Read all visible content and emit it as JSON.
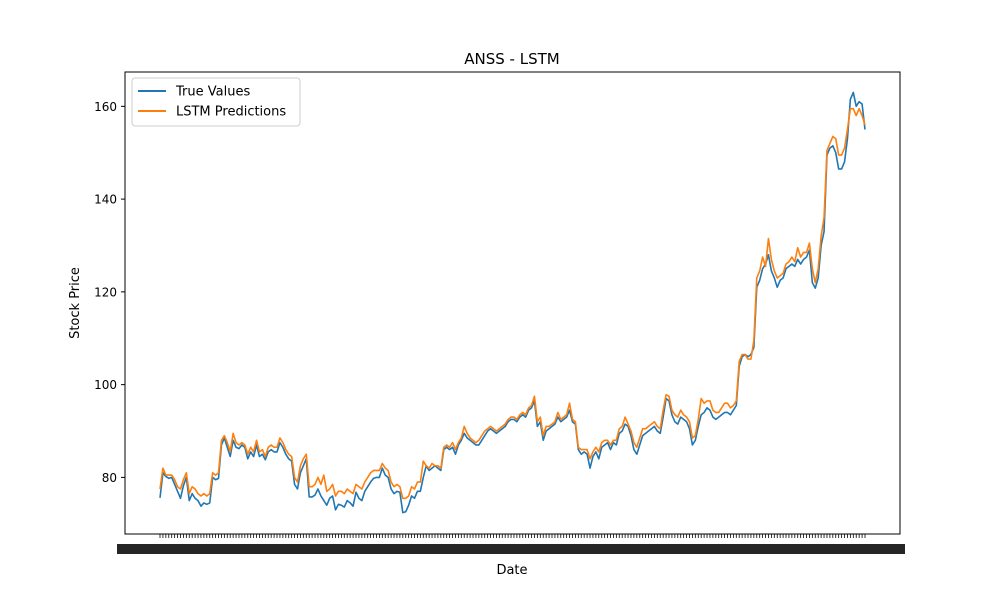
{
  "chart_data": {
    "type": "line",
    "title": "ANSS - LSTM",
    "xlabel": "Date",
    "ylabel": "Stock Price",
    "ylim": [
      67.8,
      167.4
    ],
    "yticks": [
      80,
      100,
      120,
      140,
      160
    ],
    "grid": false,
    "legend_position": "top-left",
    "x_tick_labels_note": "dense overlapping date tick labels (illegible)",
    "series": [
      {
        "name": "True Values",
        "color": "#1f77b4",
        "values": [
          75.6,
          81.0,
          80.2,
          79.8,
          80.0,
          78.5,
          77.0,
          75.5,
          78.2,
          80.0,
          75.0,
          76.5,
          75.5,
          75.0,
          73.8,
          74.5,
          74.2,
          74.5,
          80.0,
          79.5,
          79.8,
          87.0,
          88.5,
          86.5,
          84.5,
          88.0,
          86.5,
          86.2,
          87.0,
          86.5,
          84.0,
          85.5,
          84.5,
          87.0,
          84.5,
          85.0,
          83.8,
          85.5,
          86.0,
          85.5,
          85.5,
          87.5,
          86.5,
          85.0,
          84.0,
          83.5,
          78.5,
          77.5,
          81.0,
          82.5,
          84.0,
          75.8,
          75.8,
          76.2,
          77.5,
          76.0,
          75.0,
          74.0,
          75.5,
          76.0,
          73.0,
          74.2,
          74.0,
          73.6,
          75.0,
          74.5,
          73.8,
          76.8,
          75.5,
          75.0,
          77.0,
          78.0,
          79.0,
          79.8,
          80.0,
          80.0,
          82.0,
          80.5,
          80.0,
          77.5,
          76.5,
          77.0,
          76.8,
          72.4,
          72.6,
          74.0,
          76.0,
          75.5,
          77.0,
          77.0,
          80.0,
          82.5,
          81.5,
          82.0,
          82.5,
          82.0,
          81.5,
          86.0,
          86.5,
          86.0,
          86.5,
          85.0,
          87.0,
          88.0,
          89.5,
          88.5,
          88.0,
          87.5,
          87.0,
          87.0,
          88.0,
          89.0,
          90.0,
          90.5,
          90.0,
          89.5,
          90.0,
          90.5,
          91.0,
          92.0,
          92.5,
          92.5,
          92.0,
          93.0,
          93.5,
          93.0,
          94.5,
          95.0,
          96.5,
          91.0,
          92.0,
          88.0,
          90.0,
          90.5,
          91.0,
          91.5,
          93.0,
          92.0,
          92.5,
          93.0,
          94.5,
          92.0,
          91.5,
          86.0,
          85.0,
          85.5,
          85.0,
          82.0,
          84.5,
          85.5,
          84.0,
          86.5,
          87.0,
          87.5,
          86.0,
          87.5,
          87.0,
          89.5,
          90.0,
          91.5,
          91.0,
          89.0,
          86.0,
          85.0,
          87.0,
          89.0,
          89.5,
          90.0,
          90.5,
          91.0,
          90.0,
          89.5,
          93.0,
          97.0,
          96.5,
          93.5,
          92.0,
          91.5,
          93.0,
          92.5,
          92.0,
          90.5,
          87.0,
          88.0,
          91.0,
          93.5,
          94.0,
          95.0,
          94.5,
          93.0,
          92.5,
          93.0,
          93.5,
          94.0,
          94.0,
          93.5,
          94.5,
          95.5,
          104.0,
          106.0,
          106.5,
          106.0,
          106.5,
          108.0,
          121.0,
          122.5,
          125.0,
          126.0,
          128.0,
          124.5,
          123.0,
          121.0,
          122.5,
          123.0,
          125.0,
          125.5,
          126.0,
          125.5,
          127.0,
          126.0,
          127.0,
          127.5,
          129.0,
          122.0,
          120.8,
          123.0,
          130.0,
          133.0,
          149.5,
          151.0,
          151.5,
          150.0,
          146.5,
          146.5,
          148.0,
          153.0,
          161.5,
          163.0,
          160.0,
          161.0,
          160.5,
          155.0
        ],
        "note": "values visually estimated"
      },
      {
        "name": "LSTM Predictions",
        "color": "#ff7f0e",
        "values": [
          77.5,
          82.0,
          80.5,
          80.5,
          80.5,
          79.5,
          78.0,
          77.5,
          79.5,
          81.0,
          76.5,
          78.0,
          77.5,
          76.5,
          76.0,
          76.5,
          76.0,
          76.5,
          81.0,
          80.5,
          81.0,
          88.0,
          89.0,
          87.5,
          85.5,
          89.5,
          87.5,
          87.0,
          87.5,
          87.0,
          85.0,
          86.5,
          85.5,
          88.0,
          85.5,
          86.0,
          84.5,
          86.5,
          87.0,
          86.5,
          86.5,
          88.5,
          87.5,
          86.0,
          85.0,
          84.5,
          80.0,
          79.0,
          82.5,
          84.0,
          85.0,
          78.0,
          78.0,
          78.5,
          80.0,
          78.5,
          80.5,
          77.0,
          77.5,
          78.5,
          76.0,
          77.0,
          77.0,
          76.5,
          77.5,
          77.0,
          76.5,
          78.5,
          78.0,
          77.5,
          79.0,
          80.0,
          81.0,
          81.5,
          81.5,
          81.5,
          83.0,
          82.0,
          81.5,
          79.0,
          78.0,
          78.5,
          78.0,
          75.5,
          75.5,
          76.0,
          78.0,
          77.5,
          79.0,
          79.0,
          83.5,
          82.5,
          82.0,
          83.0,
          82.5,
          82.5,
          82.0,
          86.5,
          87.0,
          86.5,
          87.5,
          86.0,
          87.5,
          88.5,
          91.0,
          89.5,
          88.5,
          88.0,
          87.5,
          88.0,
          89.0,
          90.0,
          90.5,
          91.0,
          90.5,
          90.0,
          90.5,
          91.0,
          91.5,
          92.5,
          93.0,
          93.0,
          92.5,
          93.5,
          94.0,
          93.5,
          95.0,
          95.5,
          97.5,
          92.0,
          93.0,
          89.0,
          91.0,
          91.0,
          91.5,
          92.0,
          94.0,
          92.5,
          93.0,
          93.5,
          96.0,
          92.5,
          92.0,
          86.5,
          86.0,
          86.0,
          86.0,
          84.0,
          85.5,
          86.5,
          85.5,
          87.5,
          88.0,
          88.0,
          87.0,
          88.0,
          88.0,
          90.5,
          91.0,
          93.0,
          91.5,
          90.0,
          87.5,
          86.5,
          88.5,
          90.5,
          90.5,
          91.0,
          91.5,
          92.0,
          91.0,
          90.5,
          94.5,
          97.8,
          97.5,
          94.5,
          93.5,
          93.0,
          94.5,
          93.5,
          93.0,
          92.0,
          88.5,
          89.0,
          92.5,
          97.0,
          96.0,
          96.5,
          96.5,
          94.5,
          94.0,
          94.0,
          95.0,
          96.0,
          96.0,
          95.0,
          95.5,
          96.5,
          105.0,
          106.5,
          106.5,
          105.5,
          105.5,
          109.5,
          123.0,
          124.5,
          127.5,
          125.5,
          131.5,
          127.0,
          124.5,
          123.0,
          123.5,
          124.0,
          126.0,
          126.5,
          127.5,
          126.5,
          129.5,
          127.5,
          128.5,
          128.5,
          130.5,
          125.0,
          122.0,
          125.0,
          132.0,
          136.0,
          150.5,
          152.0,
          153.5,
          153.0,
          149.5,
          149.5,
          151.0,
          155.0,
          159.5,
          159.5,
          158.0,
          159.5,
          158.0,
          156.0
        ],
        "note": "values visually estimated"
      }
    ]
  }
}
